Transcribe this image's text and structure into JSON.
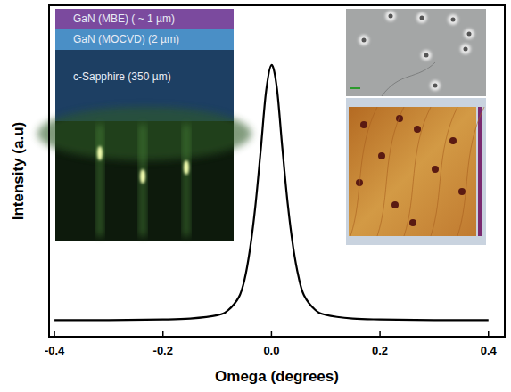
{
  "chart_data": {
    "type": "line",
    "xlabel": "Omega (degrees)",
    "ylabel": "Intensity (a.u)",
    "x": [
      -0.4,
      -0.3,
      -0.2,
      -0.15,
      -0.1,
      -0.08,
      -0.06,
      -0.05,
      -0.04,
      -0.03,
      -0.02,
      -0.01,
      0,
      0.01,
      0.02,
      0.03,
      0.04,
      0.05,
      0.06,
      0.08,
      0.1,
      0.15,
      0.2,
      0.3,
      0.4
    ],
    "values": [
      0.05,
      0.05,
      0.052,
      0.055,
      0.065,
      0.08,
      0.12,
      0.17,
      0.26,
      0.39,
      0.56,
      0.74,
      0.82,
      0.75,
      0.57,
      0.4,
      0.27,
      0.18,
      0.125,
      0.082,
      0.066,
      0.055,
      0.052,
      0.05,
      0.05
    ],
    "color": "#000000",
    "xlim": [
      -0.41,
      0.43
    ],
    "ylim": [
      0,
      1
    ],
    "xticks": [
      -0.4,
      -0.2,
      {
        "value": 0,
        "label": "0.0"
      },
      0.2,
      0.4
    ],
    "grid": false,
    "tick_labels": "x",
    "annotations": [
      "GaN (MBE) ( ~ 1 µm)",
      "GaN (MOCVD) (2 µm)",
      "c-Sapphire (350 µm)"
    ]
  }
}
